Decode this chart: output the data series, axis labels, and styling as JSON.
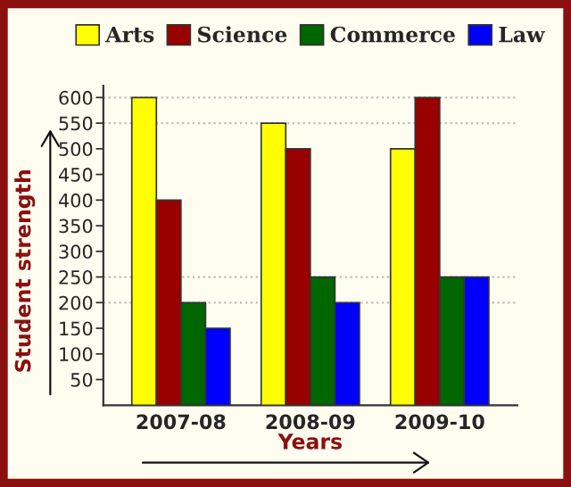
{
  "chart_data": {
    "type": "bar",
    "xlabel": "Years",
    "ylabel": "Student strength",
    "categories": [
      "2007-08",
      "2008-09",
      "2009-10"
    ],
    "series": [
      {
        "name": "Arts",
        "color": "#ffff00",
        "values": [
          600,
          550,
          500
        ]
      },
      {
        "name": "Science",
        "color": "#990000",
        "values": [
          400,
          500,
          600
        ]
      },
      {
        "name": "Commerce",
        "color": "#006600",
        "values": [
          200,
          250,
          250
        ]
      },
      {
        "name": "Law",
        "color": "#0000ff",
        "values": [
          150,
          200,
          250
        ]
      }
    ],
    "ylim": [
      0,
      623
    ],
    "yticks": [
      50,
      100,
      150,
      200,
      250,
      300,
      350,
      400,
      450,
      500,
      550,
      600
    ],
    "ref_lines": [
      {
        "axis": "y",
        "value": 600,
        "color": "#bbbbbb",
        "line_style": "dotted"
      },
      {
        "axis": "y",
        "value": 550,
        "color": "#bbbbbb",
        "line_style": "dotted"
      },
      {
        "axis": "y",
        "value": 250,
        "color": "#bbbbbb",
        "line_style": "dotted"
      },
      {
        "axis": "y",
        "value": 200,
        "color": "#bbbbbb",
        "line_style": "dotted"
      }
    ],
    "grid": false,
    "legend": "top"
  }
}
